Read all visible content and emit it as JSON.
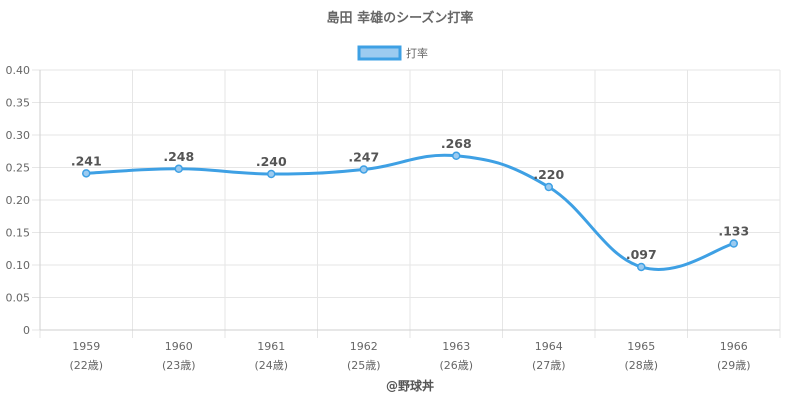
{
  "chart_data": {
    "type": "line",
    "title": "島田 幸雄のシーズン打率",
    "legend": {
      "label": "打率",
      "position": "top"
    },
    "categories": [
      "1959",
      "1960",
      "1961",
      "1962",
      "1963",
      "1964",
      "1965",
      "1966"
    ],
    "category_sublabels": [
      "(22歳)",
      "(23歳)",
      "(24歳)",
      "(25歳)",
      "(26歳)",
      "(27歳)",
      "(28歳)",
      "(29歳)"
    ],
    "series": [
      {
        "name": "打率",
        "values": [
          0.241,
          0.248,
          0.24,
          0.247,
          0.268,
          0.22,
          0.097,
          0.133
        ],
        "labels": [
          ".241",
          ".248",
          ".240",
          ".247",
          ".268",
          ".220",
          ".097",
          ".133"
        ]
      }
    ],
    "ylim": [
      0,
      0.4
    ],
    "yticks": [
      0,
      0.05,
      0.1,
      0.15,
      0.2,
      0.25,
      0.3,
      0.35,
      0.4
    ],
    "ytick_labels": [
      "0",
      "0.05",
      "0.10",
      "0.15",
      "0.20",
      "0.25",
      "0.30",
      "0.35",
      "0.40"
    ],
    "grid": true,
    "credit": "@野球丼",
    "colors": {
      "line": "#3ea0e4",
      "legend_fill": "#9ccbf0",
      "grid": "#e6e6e6",
      "text": "#666666"
    }
  }
}
